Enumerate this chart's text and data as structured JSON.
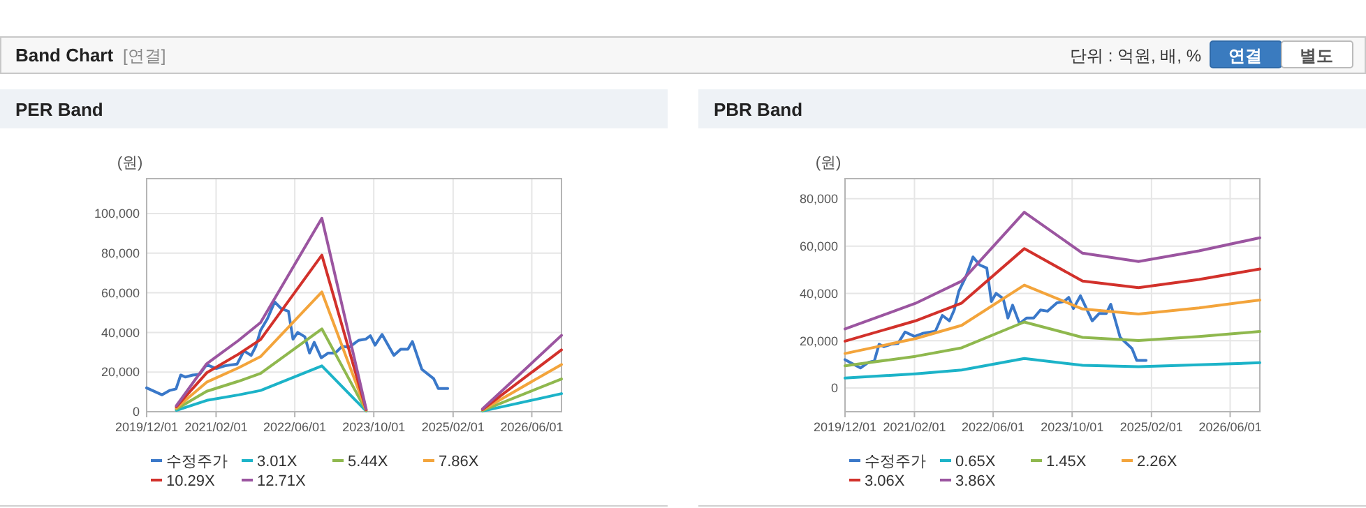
{
  "chart_data": [
    {
      "type": "other",
      "title": "Band Chart",
      "annotations": [
        "[연결]",
        "단위 : 억원, 배, %",
        "연결",
        "별도"
      ]
    },
    {
      "type": "line",
      "title": "PER Band",
      "ylabel": "(원)",
      "xlim": [
        "2019-12-01",
        "2026-12-01"
      ],
      "ylim": [
        0,
        117600
      ],
      "xticks": [
        {
          "value": "2019-12-01",
          "label": "2019/12/01"
        },
        {
          "value": "2021-02-01",
          "label": "2021/02/01"
        },
        {
          "value": "2022-06-01",
          "label": "2022/06/01"
        },
        {
          "value": "2023-10-01",
          "label": "2023/10/01"
        },
        {
          "value": "2025-02-01",
          "label": "2025/02/01"
        },
        {
          "value": "2026-06-01",
          "label": "2026/06/01"
        }
      ],
      "yticks": [
        {
          "value": 0,
          "label": "0"
        },
        {
          "value": 20000,
          "label": "20,000"
        },
        {
          "value": 40000,
          "label": "40,000"
        },
        {
          "value": 60000,
          "label": "60,000"
        },
        {
          "value": 80000,
          "label": "80,000"
        },
        {
          "value": 100000,
          "label": "100,000"
        }
      ],
      "grid": true,
      "legend": "bottom",
      "series": [
        {
          "name": "수정주가",
          "color": "#3a78c9",
          "x": [
            "2019-12-01",
            "2020-03-05",
            "2020-04-23",
            "2020-05-30",
            "2020-06-28",
            "2020-07-27",
            "2020-09-10",
            "2020-10-22",
            "2020-12-05",
            "2021-02-02",
            "2021-03-29",
            "2021-06-10",
            "2021-07-23",
            "2021-09-05",
            "2021-10-04",
            "2021-11-02",
            "2021-12-15",
            "2022-01-28",
            "2022-03-10",
            "2022-04-23",
            "2022-05-21",
            "2022-06-19",
            "2022-08-02",
            "2022-08-31",
            "2022-09-29",
            "2022-11-11",
            "2022-12-24",
            "2023-02-06",
            "2023-03-20",
            "2023-05-02",
            "2023-06-29",
            "2023-08-12",
            "2023-09-10",
            "2023-10-09",
            "2023-11-21",
            "2024-02-02",
            "2024-03-15",
            "2024-04-28",
            "2024-05-26",
            "2024-07-23",
            "2024-10-04",
            "2024-11-02",
            "2024-12-30"
          ],
          "values": [
            12000,
            8500,
            10800,
            11500,
            18500,
            17500,
            18500,
            18800,
            23700,
            21800,
            23200,
            24000,
            30700,
            28400,
            33000,
            41000,
            47000,
            55400,
            52000,
            50700,
            36600,
            40000,
            37800,
            29600,
            35000,
            27200,
            29600,
            29600,
            33000,
            32500,
            36000,
            36600,
            38300,
            33600,
            39000,
            28400,
            31500,
            31500,
            35400,
            21400,
            16700,
            11700,
            11700
          ]
        },
        {
          "name": "3.01X",
          "color": "#1cb3c8",
          "x": [
            "2020-06-01",
            "2020-12-05",
            "2021-06-20",
            "2021-11-02",
            "2022-11-15",
            "2023-08-15",
            "2024-06-01",
            "2025-08-01",
            "2026-12-01"
          ],
          "values": [
            700,
            5700,
            8500,
            10700,
            23100,
            300,
            null,
            300,
            9100
          ]
        },
        {
          "name": "5.44X",
          "color": "#8fb84e",
          "x": [
            "2020-06-01",
            "2020-12-05",
            "2021-06-20",
            "2021-11-02",
            "2022-11-15",
            "2023-08-15",
            "2024-06-01",
            "2025-08-01",
            "2026-12-01"
          ],
          "values": [
            1300,
            10300,
            15400,
            19300,
            41800,
            500,
            null,
            600,
            16500
          ]
        },
        {
          "name": "7.86X",
          "color": "#f3a43b",
          "x": [
            "2020-06-01",
            "2020-12-05",
            "2021-06-20",
            "2021-11-02",
            "2022-11-15",
            "2023-08-15",
            "2024-06-01",
            "2025-08-01",
            "2026-12-01"
          ],
          "values": [
            1900,
            14900,
            22200,
            27800,
            60400,
            800,
            null,
            900,
            23800
          ]
        },
        {
          "name": "10.29X",
          "color": "#d2312b",
          "x": [
            "2020-06-01",
            "2020-12-05",
            "2021-06-20",
            "2021-11-02",
            "2022-11-15",
            "2023-08-15",
            "2024-06-01",
            "2025-08-01",
            "2026-12-01"
          ],
          "values": [
            2500,
            19600,
            29100,
            36400,
            79000,
            1000,
            null,
            1100,
            31200
          ]
        },
        {
          "name": "12.71X",
          "color": "#9b55a0",
          "x": [
            "2020-06-01",
            "2020-12-05",
            "2021-06-20",
            "2021-11-02",
            "2022-11-15",
            "2023-08-15",
            "2024-06-01",
            "2025-08-01",
            "2026-12-01"
          ],
          "values": [
            3000,
            24200,
            36000,
            45000,
            97600,
            1300,
            null,
            1400,
            38500
          ]
        }
      ]
    },
    {
      "type": "line",
      "title": "PBR Band",
      "ylabel": "(원)",
      "xlim": [
        "2019-12-01",
        "2026-12-01"
      ],
      "ylim": [
        -10000,
        88500
      ],
      "xticks": [
        {
          "value": "2019-12-01",
          "label": "2019/12/01"
        },
        {
          "value": "2021-02-01",
          "label": "2021/02/01"
        },
        {
          "value": "2022-06-01",
          "label": "2022/06/01"
        },
        {
          "value": "2023-10-01",
          "label": "2023/10/01"
        },
        {
          "value": "2025-02-01",
          "label": "2025/02/01"
        },
        {
          "value": "2026-06-01",
          "label": "2026/06/01"
        }
      ],
      "yticks": [
        {
          "value": 0,
          "label": "0"
        },
        {
          "value": 20000,
          "label": "20,000"
        },
        {
          "value": 40000,
          "label": "40,000"
        },
        {
          "value": 60000,
          "label": "60,000"
        },
        {
          "value": 80000,
          "label": "80,000"
        }
      ],
      "grid": true,
      "legend": "bottom",
      "series": [
        {
          "name": "수정주가",
          "color": "#3a78c9",
          "x": [
            "2019-12-01",
            "2020-03-05",
            "2020-04-23",
            "2020-05-30",
            "2020-06-28",
            "2020-07-27",
            "2020-09-10",
            "2020-10-22",
            "2020-12-05",
            "2021-02-02",
            "2021-03-29",
            "2021-06-10",
            "2021-07-23",
            "2021-09-05",
            "2021-10-04",
            "2021-11-02",
            "2021-12-15",
            "2022-01-28",
            "2022-03-10",
            "2022-04-23",
            "2022-05-21",
            "2022-06-19",
            "2022-08-02",
            "2022-08-31",
            "2022-09-29",
            "2022-11-11",
            "2022-12-24",
            "2023-02-06",
            "2023-03-20",
            "2023-05-02",
            "2023-06-29",
            "2023-08-12",
            "2023-09-10",
            "2023-10-09",
            "2023-11-21",
            "2024-02-02",
            "2024-03-15",
            "2024-04-28",
            "2024-05-26",
            "2024-07-23",
            "2024-10-04",
            "2024-11-02",
            "2024-12-30"
          ],
          "values": [
            12000,
            8500,
            10800,
            11500,
            18500,
            17500,
            18500,
            18800,
            23700,
            21800,
            23200,
            24000,
            30700,
            28400,
            33000,
            41000,
            47000,
            55400,
            52000,
            50700,
            36600,
            40000,
            37800,
            29600,
            35000,
            27200,
            29600,
            29600,
            33000,
            32500,
            36000,
            36600,
            38300,
            33600,
            39000,
            28400,
            31500,
            31500,
            35400,
            21400,
            16700,
            11700,
            11700
          ]
        },
        {
          "name": "0.65X",
          "color": "#1cb3c8",
          "x": [
            "2019-12-01",
            "2021-02-07",
            "2021-11-19",
            "2022-12-10",
            "2023-12-04",
            "2024-11-13",
            "2025-11-21",
            "2026-12-01"
          ],
          "values": [
            4200,
            6000,
            7600,
            12500,
            9600,
            9000,
            9800,
            10700
          ]
        },
        {
          "name": "1.45X",
          "color": "#8fb84e",
          "x": [
            "2019-12-01",
            "2021-02-07",
            "2021-11-19",
            "2022-12-10",
            "2023-12-04",
            "2024-11-13",
            "2025-11-21",
            "2026-12-01"
          ],
          "values": [
            9400,
            13400,
            17000,
            27900,
            21400,
            20100,
            21800,
            23900
          ]
        },
        {
          "name": "2.26X",
          "color": "#f3a43b",
          "x": [
            "2019-12-01",
            "2021-02-07",
            "2021-11-19",
            "2022-12-10",
            "2023-12-04",
            "2024-11-13",
            "2025-11-21",
            "2026-12-01"
          ],
          "values": [
            14600,
            20900,
            26500,
            43500,
            33400,
            31300,
            33900,
            37200
          ]
        },
        {
          "name": "3.06X",
          "color": "#d2312b",
          "x": [
            "2019-12-01",
            "2021-02-07",
            "2021-11-19",
            "2022-12-10",
            "2023-12-04",
            "2024-11-13",
            "2025-11-21",
            "2026-12-01"
          ],
          "values": [
            19800,
            28400,
            35900,
            58900,
            45200,
            42400,
            45900,
            50300
          ]
        },
        {
          "name": "3.86X",
          "color": "#9b55a0",
          "x": [
            "2019-12-01",
            "2021-02-07",
            "2021-11-19",
            "2022-12-10",
            "2023-12-04",
            "2024-11-13",
            "2025-11-21",
            "2026-12-01"
          ],
          "values": [
            25000,
            35800,
            45200,
            74300,
            57000,
            53500,
            58000,
            63500
          ]
        }
      ]
    }
  ]
}
